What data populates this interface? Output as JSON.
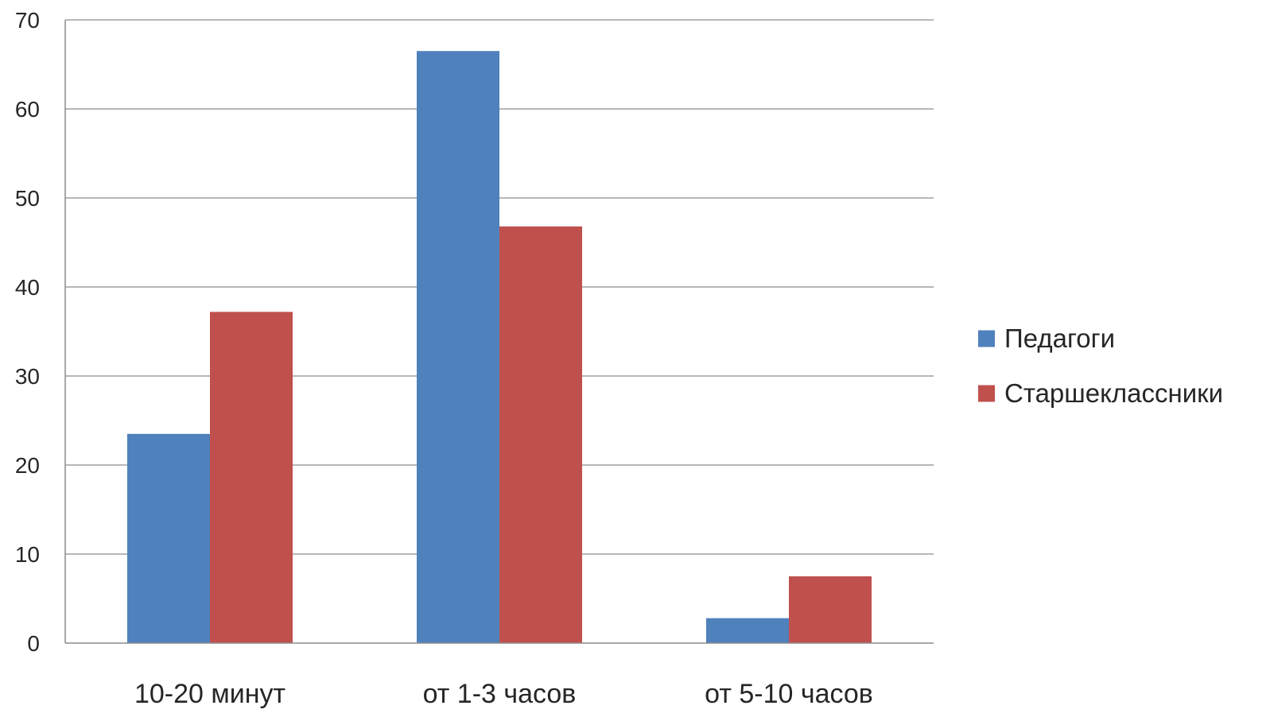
{
  "chart_data": {
    "type": "bar",
    "title": "",
    "xlabel": "",
    "ylabel": "",
    "categories": [
      "10-20 минут",
      "от 1-3 часов",
      "от 5-10 часов"
    ],
    "series": [
      {
        "name": "Педагоги",
        "values": [
          23.5,
          66.5,
          2.8
        ],
        "color": "#4F81BD"
      },
      {
        "name": "Старшеклассники",
        "values": [
          37.2,
          46.8,
          7.5
        ],
        "color": "#C0504D"
      }
    ],
    "ylim": [
      0,
      70
    ],
    "yticks": [
      0,
      10,
      20,
      30,
      40,
      50,
      60,
      70
    ],
    "grid": true,
    "legend_position": "right"
  }
}
